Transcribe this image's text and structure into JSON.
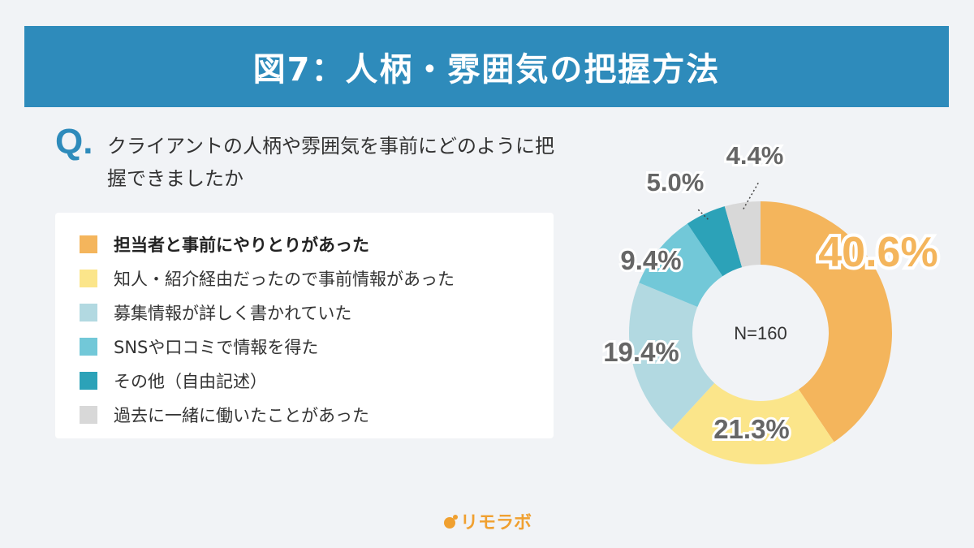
{
  "header": {
    "title": "図7：人柄・雰囲気の把握方法"
  },
  "question": {
    "mark": "Q.",
    "text": "クライアントの人柄や雰囲気を事前にどのように把握できましたか"
  },
  "chart_data": {
    "type": "pie",
    "donut": true,
    "center_label": "N=160",
    "slices": [
      {
        "label": "担当者と事前にやりとりがあった",
        "value": 40.6,
        "display": "40.6%",
        "color": "#f4b55c"
      },
      {
        "label": "知人・紹介経由だったので事前情報があった",
        "value": 21.3,
        "display": "21.3%",
        "color": "#fbe58a"
      },
      {
        "label": "募集情報が詳しく書かれていた",
        "value": 19.4,
        "display": "19.4%",
        "color": "#b2d9e1"
      },
      {
        "label": "SNSや口コミで情報を得た",
        "value": 9.4,
        "display": "9.4%",
        "color": "#72c8d8"
      },
      {
        "label": "その他（自由記述）",
        "value": 5.0,
        "display": "5.0%",
        "color": "#2ca2b8"
      },
      {
        "label": "過去に一緒に働いたことがあった",
        "value": 4.4,
        "display": "4.4%",
        "color": "#d8d8d8"
      }
    ]
  },
  "brand": {
    "name": "リモラボ"
  }
}
